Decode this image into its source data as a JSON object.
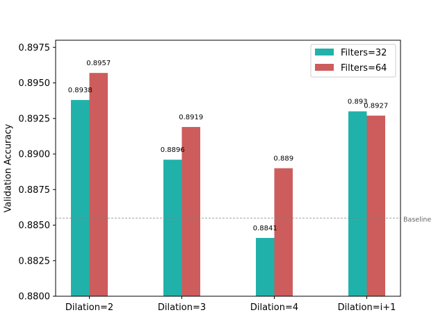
{
  "chart_data": {
    "type": "bar",
    "categories": [
      "Dilation=2",
      "Dilation=3",
      "Dilation=4",
      "Dilation=i+1"
    ],
    "series": [
      {
        "name": "Filters=32",
        "color": "#20b2aa",
        "values": [
          0.8938,
          0.8896,
          0.8841,
          0.893
        ],
        "labels": [
          "0.8938",
          "0.8896",
          "0.8841",
          "0.893"
        ]
      },
      {
        "name": "Filters=64",
        "color": "#cd5c5c",
        "values": [
          0.8957,
          0.8919,
          0.889,
          0.8927
        ],
        "labels": [
          "0.8957",
          "0.8919",
          "0.889",
          "0.8927"
        ]
      }
    ],
    "ylabel": "Validation Accuracy",
    "ylim": [
      0.88,
      0.898
    ],
    "yticks": [
      0.88,
      0.8825,
      0.885,
      0.8875,
      0.89,
      0.8925,
      0.895,
      0.8975
    ],
    "ytick_labels": [
      "0.8800",
      "0.8825",
      "0.8850",
      "0.8875",
      "0.8900",
      "0.8925",
      "0.8950",
      "0.8975"
    ],
    "baseline": {
      "label": "Baseline",
      "value": 0.8855,
      "color": "#808080"
    },
    "legend_position": "top-right",
    "grid": false
  }
}
